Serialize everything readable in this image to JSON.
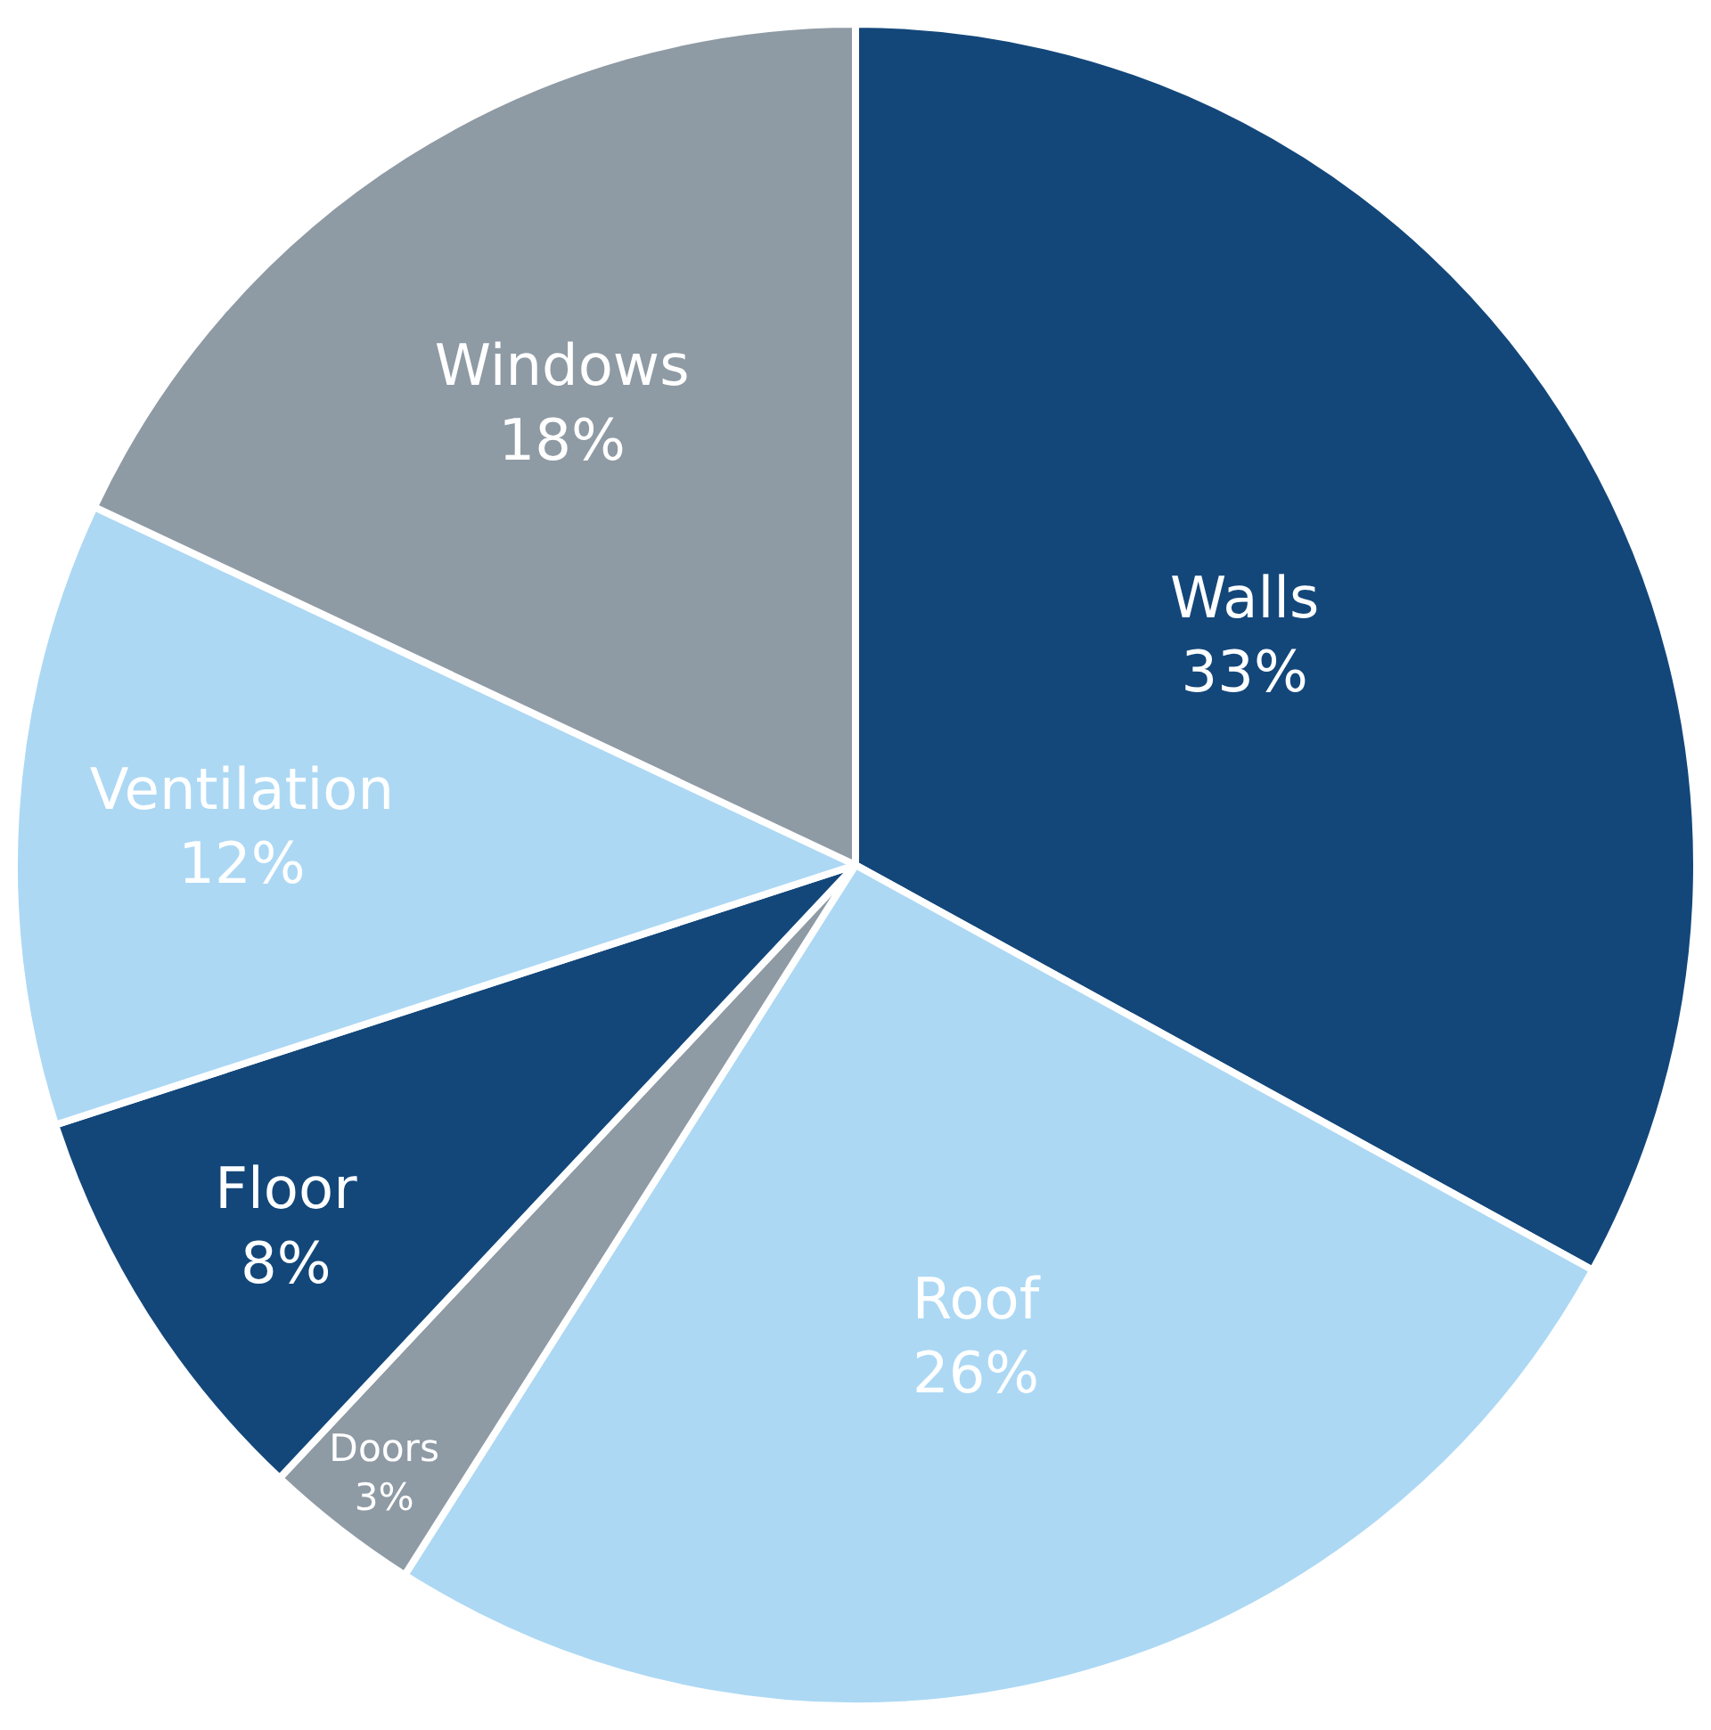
{
  "chart_data": {
    "type": "pie",
    "categories": [
      "Walls",
      "Roof",
      "Doors",
      "Floor",
      "Ventilation",
      "Windows"
    ],
    "values": [
      33,
      26,
      3,
      8,
      12,
      18
    ],
    "value_labels": [
      "33%",
      "26%",
      "3%",
      "8%",
      "12%",
      "18%"
    ],
    "colors": [
      "#13477a",
      "#acd8f4",
      "#8e9aa4",
      "#13477a",
      "#acd8f4",
      "#8e9aa4"
    ],
    "legend": false
  }
}
